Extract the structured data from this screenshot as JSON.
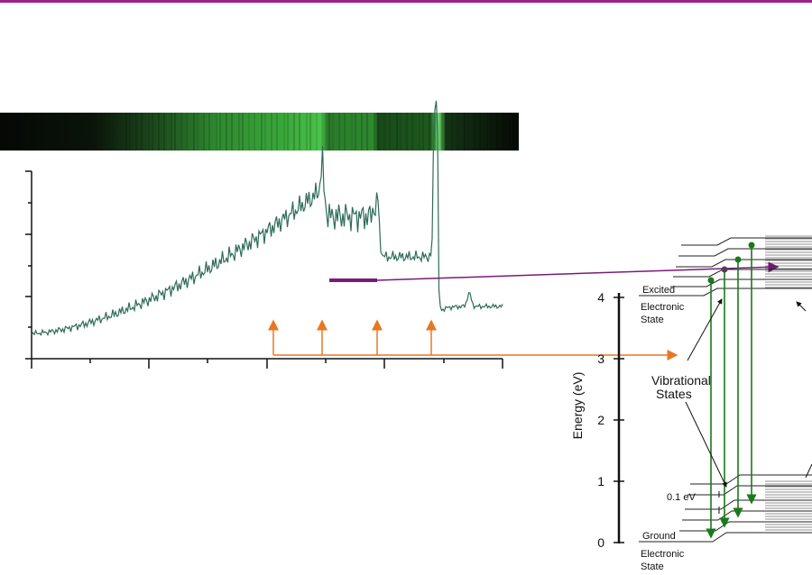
{
  "energy_diagram": {
    "axis_label": "Energy (eV)",
    "ticks": [
      0,
      1,
      2,
      3,
      4
    ],
    "excited": [
      "Excited",
      "Electronic",
      "State"
    ],
    "vibrational": [
      "Vibrational",
      "States"
    ],
    "spacing": "0.1 eV",
    "ground": [
      "Ground",
      "Electronic",
      "State"
    ]
  }
}
